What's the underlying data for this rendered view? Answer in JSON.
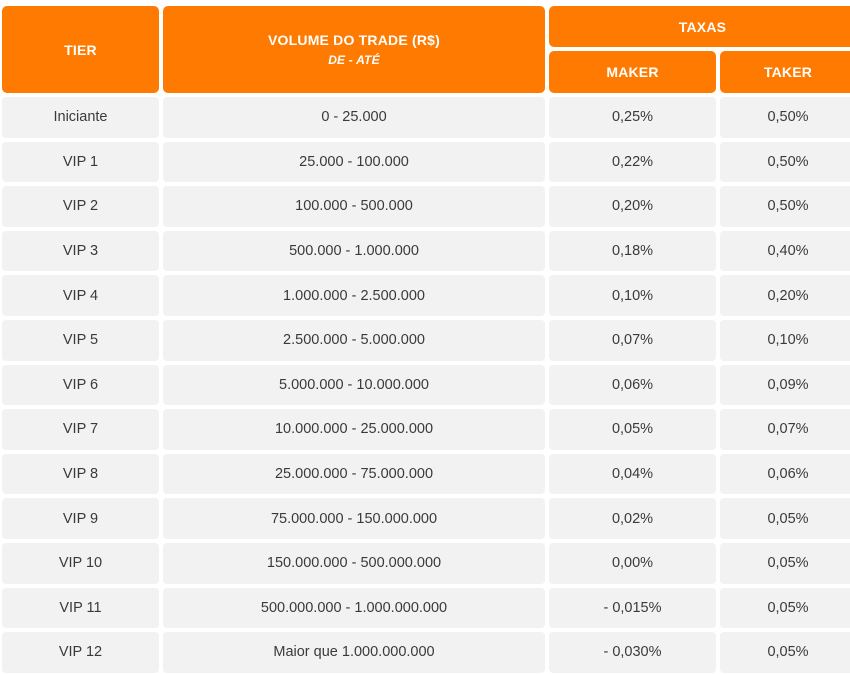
{
  "header": {
    "tier": "TIER",
    "volume": "VOLUME DO TRADE (R$)",
    "volume_sub": "DE - ATÉ",
    "taxas": "TAXAS",
    "maker": "MAKER",
    "taker": "TAKER"
  },
  "rows": [
    {
      "tier": "Iniciante",
      "volume": "0 - 25.000",
      "maker": "0,25%",
      "taker": "0,50%"
    },
    {
      "tier": "VIP 1",
      "volume": "25.000 - 100.000",
      "maker": "0,22%",
      "taker": "0,50%"
    },
    {
      "tier": "VIP 2",
      "volume": "100.000 - 500.000",
      "maker": "0,20%",
      "taker": "0,50%"
    },
    {
      "tier": "VIP 3",
      "volume": "500.000 - 1.000.000",
      "maker": "0,18%",
      "taker": "0,40%"
    },
    {
      "tier": "VIP 4",
      "volume": "1.000.000 - 2.500.000",
      "maker": "0,10%",
      "taker": "0,20%"
    },
    {
      "tier": "VIP 5",
      "volume": "2.500.000 - 5.000.000",
      "maker": "0,07%",
      "taker": "0,10%"
    },
    {
      "tier": "VIP 6",
      "volume": "5.000.000 - 10.000.000",
      "maker": "0,06%",
      "taker": "0,09%"
    },
    {
      "tier": "VIP 7",
      "volume": "10.000.000 - 25.000.000",
      "maker": "0,05%",
      "taker": "0,07%"
    },
    {
      "tier": "VIP 8",
      "volume": "25.000.000 - 75.000.000",
      "maker": "0,04%",
      "taker": "0,06%"
    },
    {
      "tier": "VIP 9",
      "volume": "75.000.000 - 150.000.000",
      "maker": "0,02%",
      "taker": "0,05%"
    },
    {
      "tier": "VIP 10",
      "volume": "150.000.000 - 500.000.000",
      "maker": "0,00%",
      "taker": "0,05%"
    },
    {
      "tier": "VIP 11",
      "volume": "500.000.000 - 1.000.000.000",
      "maker": "- 0,015%",
      "taker": "0,05%"
    },
    {
      "tier": "VIP 12",
      "volume": "Maior que 1.000.000.000",
      "maker": "- 0,030%",
      "taker": "0,05%"
    }
  ],
  "colors": {
    "header_bg": "#ff7a00",
    "header_text": "#ffffff",
    "cell_bg": "#f2f2f2",
    "cell_text": "#3a3a3a"
  }
}
